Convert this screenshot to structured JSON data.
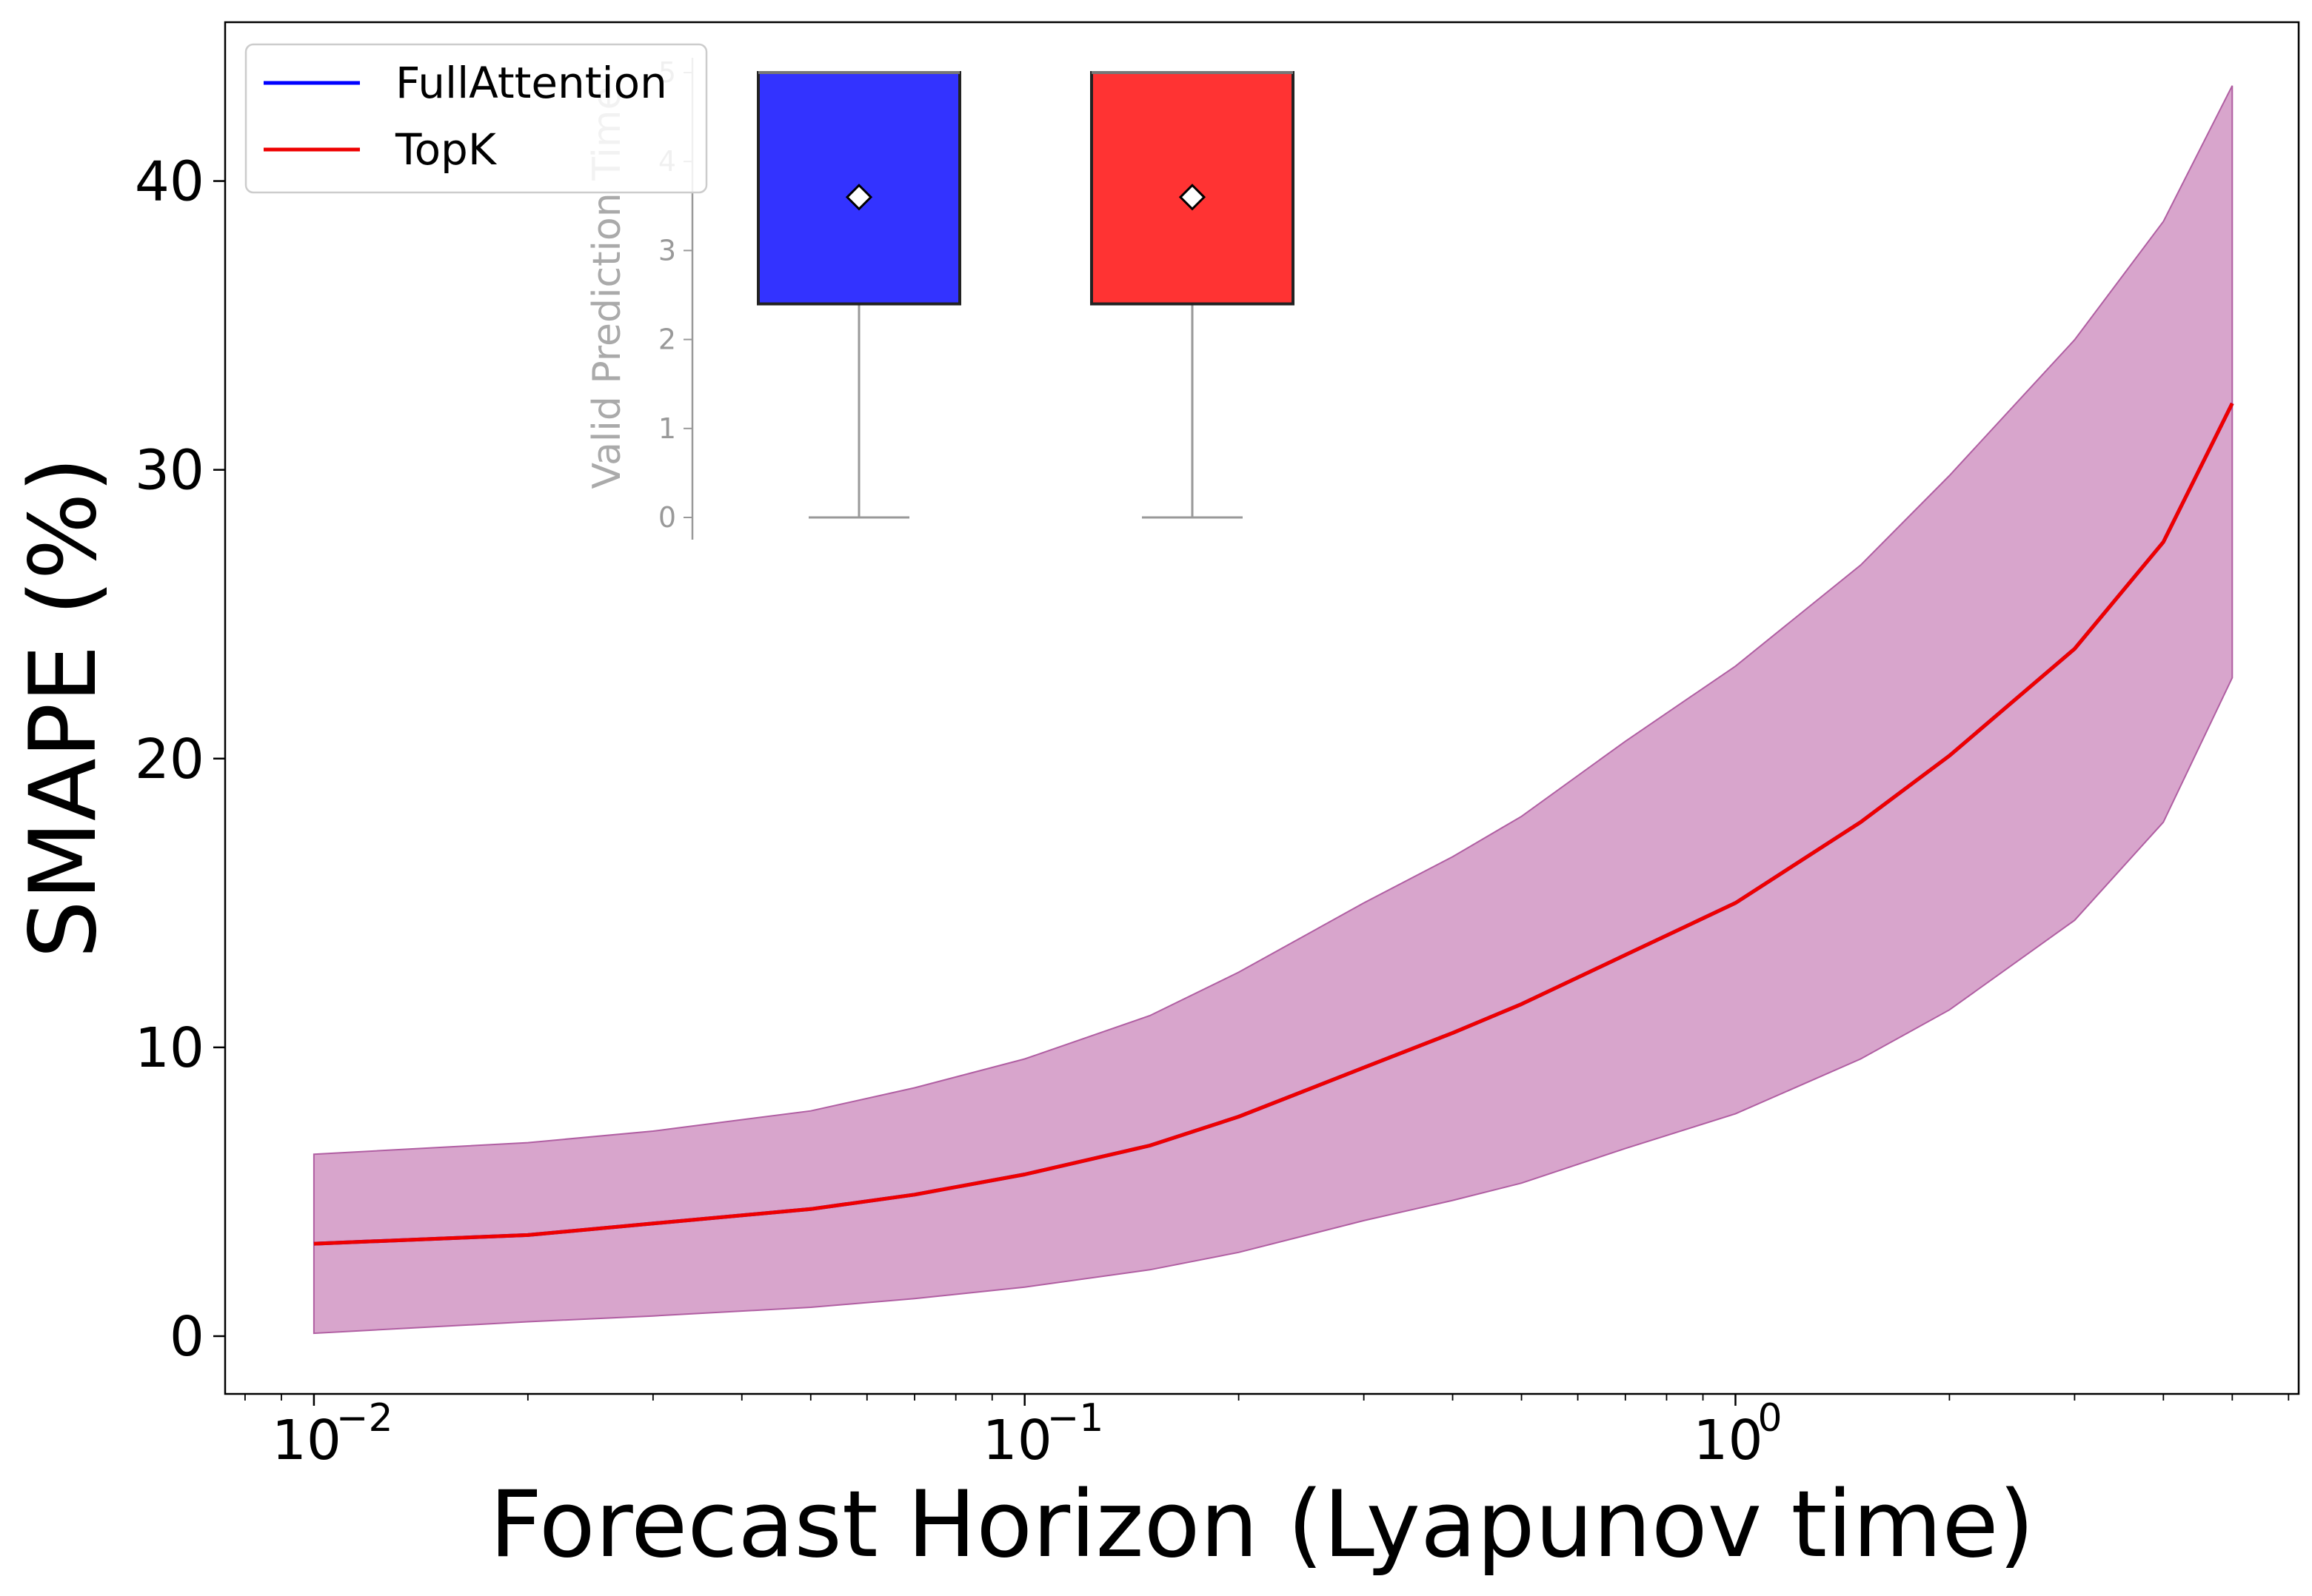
{
  "chart_data": {
    "type": "line",
    "xlabel": "Forecast Horizon (Lyapunov time)",
    "ylabel": "SMAPE (%)",
    "xscale": "log",
    "xlim": [
      0.0075,
      6.2
    ],
    "ylim": [
      -2,
      45.5
    ],
    "x_ticks": [
      {
        "value": 0.01,
        "base": "10",
        "exp": "−2"
      },
      {
        "value": 0.1,
        "base": "10",
        "exp": "−1"
      },
      {
        "value": 1,
        "base": "10",
        "exp": "0"
      }
    ],
    "y_ticks": [
      0,
      10,
      20,
      30,
      40
    ],
    "grid": false,
    "legend": {
      "position": "top-left",
      "entries": [
        {
          "name": "FullAttention",
          "color": "#0000ff"
        },
        {
          "name": "TopK",
          "color": "#ee0000"
        }
      ]
    },
    "x": [
      0.01,
      0.02,
      0.03,
      0.05,
      0.07,
      0.1,
      0.15,
      0.2,
      0.3,
      0.4,
      0.5,
      0.7,
      1.0,
      1.5,
      2.0,
      3.0,
      4.0,
      5.0
    ],
    "series": [
      {
        "name": "FullAttention",
        "color": "#0000ff",
        "values": [
          3.2,
          3.5,
          3.9,
          4.4,
          4.9,
          5.6,
          6.6,
          7.6,
          9.3,
          10.5,
          11.5,
          13.2,
          15.0,
          17.8,
          20.1,
          23.8,
          27.5,
          32.3
        ]
      },
      {
        "name": "TopK",
        "color": "#ee0000",
        "values": [
          3.2,
          3.5,
          3.9,
          4.4,
          4.9,
          5.6,
          6.6,
          7.6,
          9.3,
          10.5,
          11.5,
          13.2,
          15.0,
          17.8,
          20.1,
          23.8,
          27.5,
          32.3
        ]
      }
    ],
    "band": {
      "color": "#c77fb7",
      "lower": [
        0.1,
        0.5,
        0.7,
        1.0,
        1.3,
        1.7,
        2.3,
        2.9,
        4.0,
        4.7,
        5.3,
        6.5,
        7.7,
        9.6,
        11.3,
        14.4,
        17.8,
        22.8
      ],
      "upper": [
        6.3,
        6.7,
        7.1,
        7.8,
        8.6,
        9.6,
        11.1,
        12.6,
        15.0,
        16.6,
        18.0,
        20.6,
        23.2,
        26.7,
        29.8,
        34.5,
        38.6,
        43.3
      ]
    },
    "inset": {
      "type": "box",
      "ylabel": "Valid Prediction Time",
      "ylim": [
        0,
        5
      ],
      "y_ticks": [
        0,
        1,
        2,
        3,
        4,
        5
      ],
      "boxes": [
        {
          "name": "FullAttention",
          "color": "#3333ff",
          "whisker_low": 0,
          "q1": 2.4,
          "median": 5.0,
          "q3": 5.0,
          "whisker_high": 5.0,
          "mean": 3.6
        },
        {
          "name": "TopK",
          "color": "#ff3333",
          "whisker_low": 0,
          "q1": 2.4,
          "median": 5.0,
          "q3": 5.0,
          "whisker_high": 5.0,
          "mean": 3.6
        }
      ]
    }
  }
}
